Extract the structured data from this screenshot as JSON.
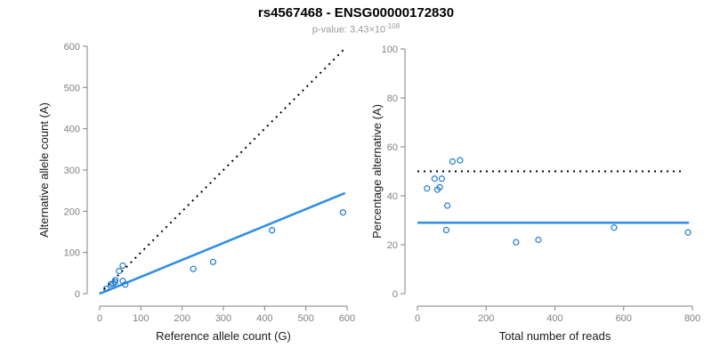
{
  "header": {
    "title": "rs4567468 - ENSG00000172830",
    "subtitle_prefix": "p-value: 3.43×10",
    "subtitle_exponent": "-108"
  },
  "colors": {
    "axis": "#808080",
    "tick_label": "#808080",
    "axis_title": "#1a1a1a",
    "point": "#1f78d1",
    "fit_line": "#2e8de5",
    "identity_line": "#000000"
  },
  "chart_data": [
    {
      "type": "scatter",
      "name": "allele-count-scatter",
      "xlabel": "Reference allele count (G)",
      "ylabel": "Alternative allele count (A)",
      "xlim": [
        0,
        600
      ],
      "ylim": [
        0,
        600
      ],
      "xticks": [
        0,
        100,
        200,
        300,
        400,
        500,
        600
      ],
      "yticks": [
        0,
        100,
        200,
        300,
        400,
        500,
        600
      ],
      "grid": false,
      "points": [
        [
          16,
          12
        ],
        [
          27,
          23
        ],
        [
          33,
          25
        ],
        [
          37,
          28
        ],
        [
          38,
          33
        ],
        [
          62,
          22
        ],
        [
          56,
          31
        ],
        [
          47,
          55
        ],
        [
          56,
          68
        ],
        [
          227,
          60
        ],
        [
          275,
          77
        ],
        [
          418,
          154
        ],
        [
          590,
          197
        ]
      ],
      "lines": [
        {
          "name": "identity-line",
          "style": "dotted",
          "color_key": "identity_line",
          "width": 2,
          "x1": 0,
          "y1": 0,
          "x2": 592,
          "y2": 592
        },
        {
          "name": "regression-line",
          "style": "solid",
          "color_key": "fit_line",
          "width": 2.5,
          "x1": 0,
          "y1": 0,
          "x2": 595,
          "y2": 244
        }
      ]
    },
    {
      "type": "scatter",
      "name": "percentage-alternative-scatter",
      "xlabel": "Total number of reads",
      "ylabel": "Percentage alternative (A)",
      "xlim": [
        0,
        800
      ],
      "ylim": [
        0,
        100
      ],
      "xticks": [
        0,
        200,
        400,
        600,
        800
      ],
      "yticks": [
        0,
        20,
        40,
        60,
        80,
        100
      ],
      "grid": false,
      "points": [
        [
          28,
          43
        ],
        [
          50,
          47
        ],
        [
          58,
          42.5
        ],
        [
          65,
          43.5
        ],
        [
          71,
          47
        ],
        [
          84,
          26
        ],
        [
          87,
          36
        ],
        [
          102,
          54
        ],
        [
          124,
          54.5
        ],
        [
          287,
          21
        ],
        [
          352,
          22
        ],
        [
          572,
          27
        ],
        [
          787,
          25
        ]
      ],
      "lines": [
        {
          "name": "fifty-percent-line",
          "style": "dotted",
          "color_key": "identity_line",
          "width": 2,
          "x1": 0,
          "y1": 50,
          "x2": 775,
          "y2": 50
        },
        {
          "name": "mean-percentage-line",
          "style": "solid",
          "color_key": "fit_line",
          "width": 2.5,
          "x1": 0,
          "y1": 29,
          "x2": 790,
          "y2": 29
        }
      ]
    }
  ]
}
